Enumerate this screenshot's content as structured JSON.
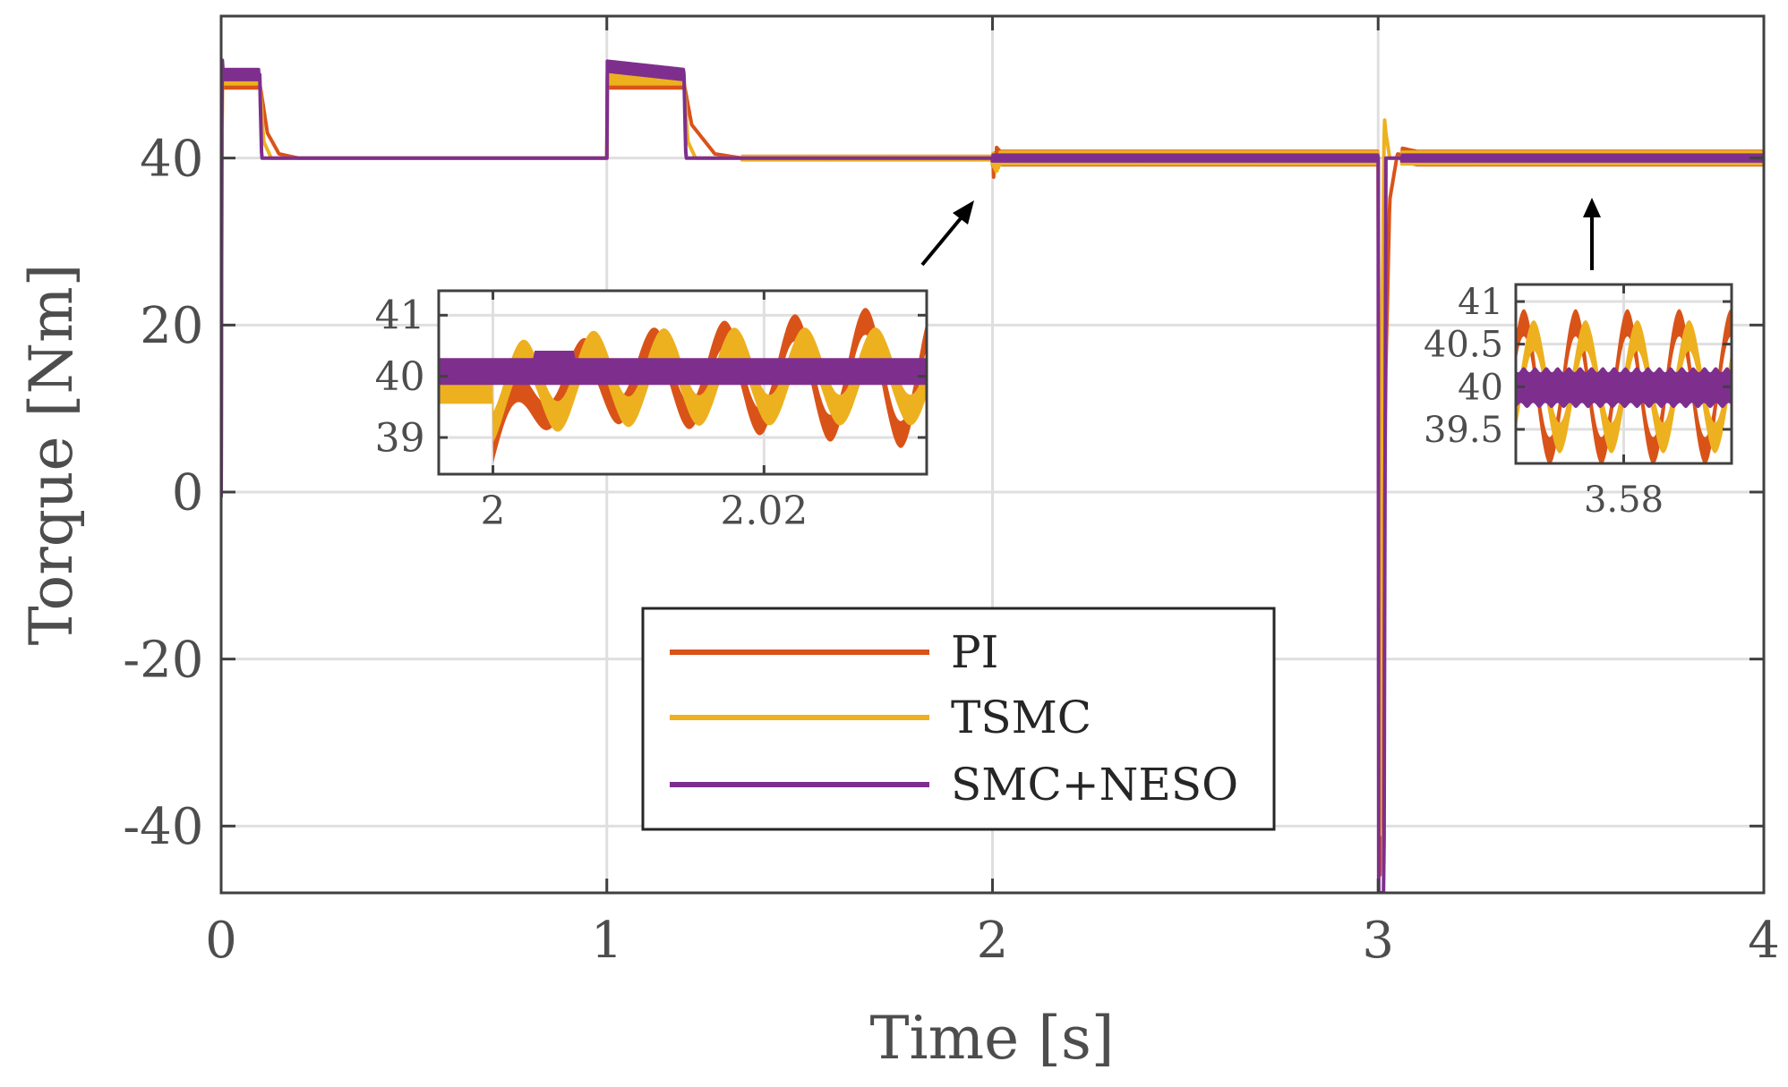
{
  "chart_data": [
    {
      "id": "main",
      "type": "line",
      "title": "",
      "xlabel": "Time [s]",
      "ylabel": "Torque [Nm]",
      "xlim": [
        0,
        4
      ],
      "ylim": [
        -48,
        57
      ],
      "xticks": [
        0,
        1,
        2,
        3,
        4
      ],
      "xtick_labels": [
        "0",
        "1",
        "2",
        "3",
        "4"
      ],
      "yticks": [
        -40,
        -20,
        0,
        20,
        40
      ],
      "ytick_labels": [
        "-40",
        "-20",
        "0",
        "20",
        "40"
      ],
      "grid": true,
      "legend": {
        "placement": "lower-center",
        "entries": [
          "PI",
          "TSMC",
          "SMC+NESO"
        ]
      },
      "series": [
        {
          "name": "PI",
          "color": "#D95319",
          "points": [
            [
              0,
              0
            ],
            [
              0.002,
              49
            ],
            [
              0.1,
              49
            ],
            [
              0.12,
              43
            ],
            [
              0.15,
              40.5
            ],
            [
              0.2,
              40
            ],
            [
              1.0,
              40
            ],
            [
              1.001,
              49
            ],
            [
              1.2,
              49
            ],
            [
              1.22,
              44
            ],
            [
              1.28,
              40.5
            ],
            [
              1.35,
              40
            ],
            [
              2.0,
              40
            ],
            [
              2.003,
              38.5
            ],
            [
              2.01,
              40.5
            ],
            [
              2.02,
              40
            ],
            [
              3.0,
              40
            ],
            [
              3.004,
              -48
            ],
            [
              3.012,
              -20
            ],
            [
              3.02,
              15
            ],
            [
              3.03,
              35
            ],
            [
              3.05,
              40.5
            ],
            [
              3.1,
              40
            ],
            [
              4.0,
              40
            ]
          ],
          "ripple_amp": 0.8
        },
        {
          "name": "TSMC",
          "color": "#EDB120",
          "points": [
            [
              0,
              0
            ],
            [
              0.002,
              49.5
            ],
            [
              0.1,
              49.5
            ],
            [
              0.11,
              42
            ],
            [
              0.13,
              40
            ],
            [
              1.0,
              40
            ],
            [
              1.001,
              49.5
            ],
            [
              1.2,
              49.5
            ],
            [
              1.21,
              42
            ],
            [
              1.23,
              40
            ],
            [
              2.0,
              40
            ],
            [
              2.01,
              39
            ],
            [
              2.02,
              40
            ],
            [
              3.0,
              40
            ],
            [
              3.004,
              -48
            ],
            [
              3.01,
              20
            ],
            [
              3.016,
              45
            ],
            [
              3.02,
              43
            ],
            [
              3.03,
              40
            ],
            [
              4.0,
              40
            ]
          ],
          "ripple_amp": 0.7
        },
        {
          "name": "SMC+NESO",
          "color": "#7E2F8E",
          "points": [
            [
              0,
              0
            ],
            [
              0.002,
              55
            ],
            [
              0.004,
              50
            ],
            [
              0.1,
              50
            ],
            [
              0.105,
              40
            ],
            [
              1.0,
              40
            ],
            [
              1.001,
              51
            ],
            [
              1.2,
              50
            ],
            [
              1.205,
              40
            ],
            [
              3.0,
              40
            ],
            [
              3.001,
              -48
            ],
            [
              3.015,
              -48
            ],
            [
              3.02,
              40
            ],
            [
              4.0,
              40
            ]
          ],
          "ripple_amp": 0.35
        }
      ]
    },
    {
      "id": "inset1",
      "type": "line",
      "title": "",
      "xlim": [
        1.996,
        2.032
      ],
      "ylim": [
        38.4,
        41.4
      ],
      "xticks": [
        2.0,
        2.02
      ],
      "xtick_labels": [
        "2",
        "2.02"
      ],
      "yticks": [
        39,
        40,
        41
      ],
      "ytick_labels": [
        "39",
        "40",
        "41"
      ],
      "grid": true,
      "series": [
        {
          "name": "PI",
          "color": "#D95319"
        },
        {
          "name": "TSMC",
          "color": "#EDB120"
        },
        {
          "name": "SMC+NESO",
          "color": "#7E2F8E"
        }
      ]
    },
    {
      "id": "inset2",
      "type": "line",
      "title": "",
      "xlim": [
        3.565,
        3.595
      ],
      "ylim": [
        39.1,
        41.2
      ],
      "xticks": [
        3.58
      ],
      "xtick_labels": [
        "3.58"
      ],
      "yticks": [
        39.5,
        40,
        40.5,
        41
      ],
      "ytick_labels": [
        "39.5",
        "40",
        "40.5",
        "41"
      ],
      "grid": true,
      "series": [
        {
          "name": "PI",
          "color": "#D95319"
        },
        {
          "name": "TSMC",
          "color": "#EDB120"
        },
        {
          "name": "SMC+NESO",
          "color": "#7E2F8E"
        }
      ]
    }
  ],
  "colors": {
    "axis": "#404040",
    "grid": "#dfdfdf",
    "text": "#4d4d4d",
    "arrow": "#000000"
  }
}
